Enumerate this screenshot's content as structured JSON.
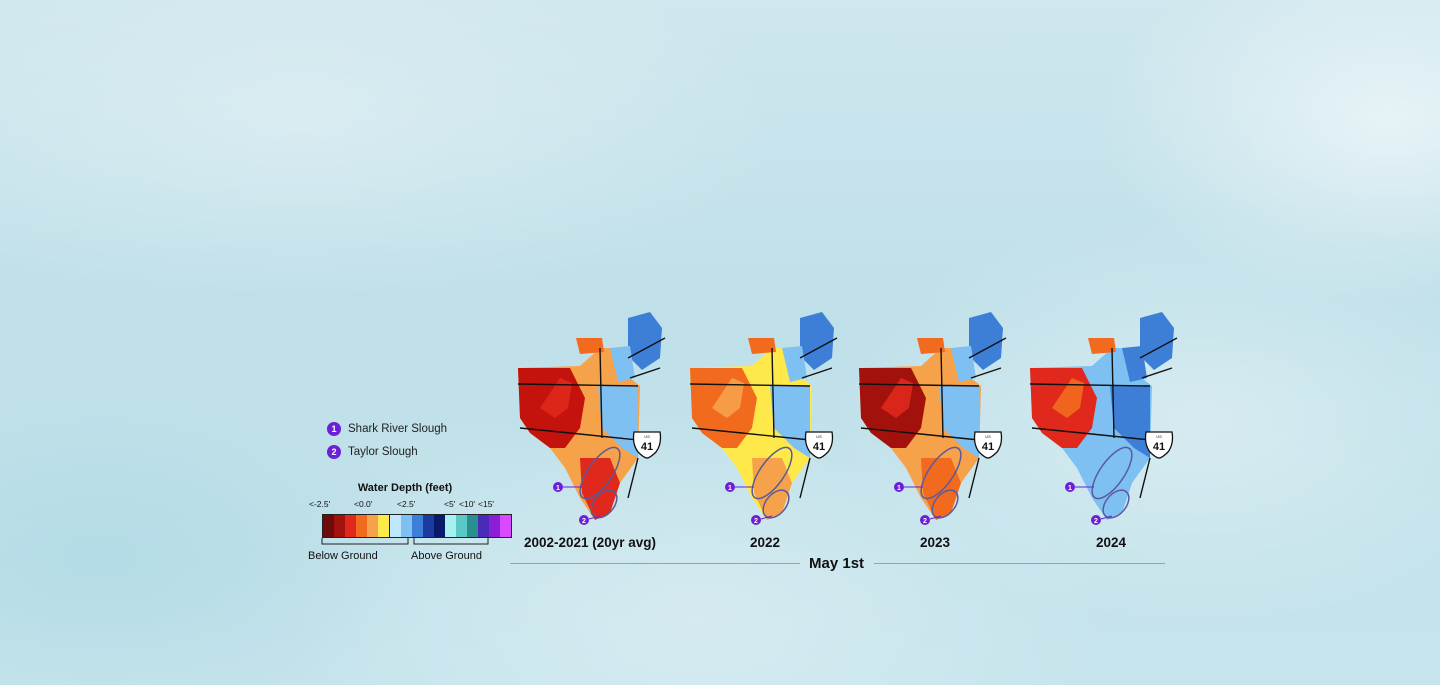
{
  "legend": {
    "locations": [
      {
        "number": "1",
        "name": "Shark River Slough"
      },
      {
        "number": "2",
        "name": "Taylor Slough"
      }
    ],
    "scale_title": "Water Depth (feet)",
    "tick_labels": [
      "<-2.5'",
      "<0.0'",
      "<2.5'",
      "<5'",
      "<10'",
      "<15'"
    ],
    "below_label": "Below Ground",
    "above_label": "Above Ground",
    "colors": [
      "#6e0a0a",
      "#a3110d",
      "#e0291c",
      "#f26a1e",
      "#f6a24a",
      "#ffe94a",
      "#bfe7ff",
      "#7fc0f2",
      "#3d7fd6",
      "#1d3aa0",
      "#0a1a6b",
      "#a8f0f0",
      "#5cc7c7",
      "#2a8f8f",
      "#4a2ab8",
      "#8a1fd6",
      "#d94aff"
    ]
  },
  "maps": [
    {
      "label": "2002-2021 (20yr avg)",
      "highway": "41"
    },
    {
      "label": "2022",
      "highway": "41"
    },
    {
      "label": "2023",
      "highway": "41"
    },
    {
      "label": "2024",
      "highway": "41"
    }
  ],
  "date_label": "May 1st",
  "marker_numbers": [
    "1",
    "2"
  ],
  "us_label": "US"
}
